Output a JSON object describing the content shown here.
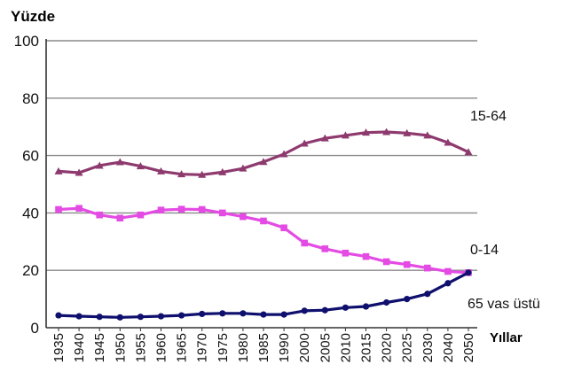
{
  "chart_data": {
    "type": "line",
    "ylabel": "Yüzde",
    "xlabel": "Yıllar",
    "ylim": [
      0,
      100
    ],
    "yticks": [
      0,
      20,
      40,
      60,
      80,
      100
    ],
    "grid": true,
    "x": [
      "1935",
      "1940",
      "1945",
      "1950",
      "1955",
      "1960",
      "1965",
      "1970",
      "1975",
      "1980",
      "1985",
      "1990",
      "2000",
      "2005",
      "2010",
      "2015",
      "2020",
      "2025",
      "2030",
      "2040",
      "2050"
    ],
    "series": [
      {
        "name": "15-64",
        "color": "#8e3a6e",
        "marker": "triangle",
        "values": [
          54.5,
          54,
          56.5,
          57.7,
          56.3,
          54.5,
          53.5,
          53.3,
          54.2,
          55.5,
          57.8,
          60.5,
          64.2,
          66,
          67,
          68,
          68.2,
          67.8,
          67,
          64.5,
          61.2
        ]
      },
      {
        "name": "0-14",
        "color": "#e44be4",
        "marker": "square",
        "values": [
          41.2,
          41.6,
          39.3,
          38.2,
          39.3,
          41,
          41.3,
          41.2,
          40,
          38.7,
          37.2,
          34.8,
          29.5,
          27.5,
          26,
          24.8,
          23,
          22,
          20.8,
          19.6,
          19.2
        ]
      },
      {
        "name": "65 vas üstü",
        "color": "#0f0f6e",
        "marker": "circle",
        "values": [
          4.3,
          4,
          3.8,
          3.6,
          3.8,
          4,
          4.3,
          4.8,
          5,
          5,
          4.6,
          4.6,
          5.9,
          6.1,
          7,
          7.4,
          8.8,
          10,
          11.8,
          15.5,
          19.2
        ]
      }
    ]
  }
}
